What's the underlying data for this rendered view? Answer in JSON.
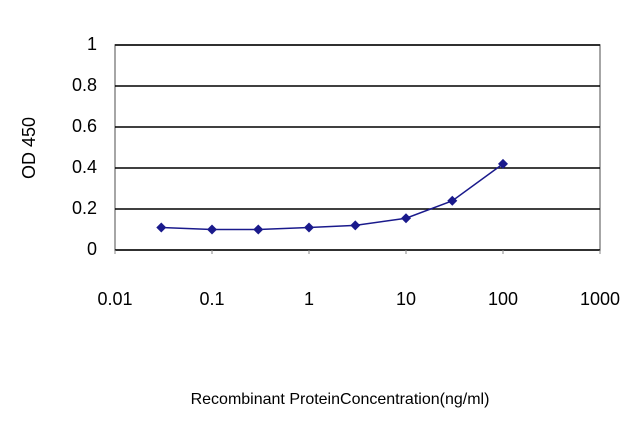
{
  "chart_data": {
    "type": "line",
    "y_label": "OD 450",
    "x_label": "Recombinant ProteinConcentration(ng/ml)",
    "x": [
      0.03,
      0.1,
      0.3,
      1,
      3,
      10,
      30,
      100
    ],
    "values": [
      0.11,
      0.1,
      0.1,
      0.11,
      0.12,
      0.155,
      0.24,
      0.42
    ],
    "color": "#1a1a8c",
    "xlog": true,
    "xlim": [
      0.01,
      1000
    ],
    "xticks": [
      0.01,
      0.1,
      1,
      10,
      100,
      1000
    ],
    "ylim": [
      0,
      1
    ],
    "yticks": [
      0,
      0.2,
      0.4,
      0.6,
      0.8,
      1
    ],
    "grid": true
  }
}
